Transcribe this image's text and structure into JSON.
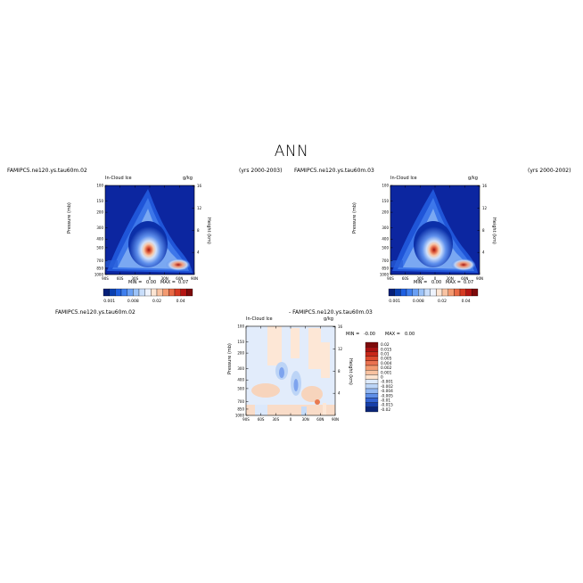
{
  "page": {
    "title": "ANN"
  },
  "panels": [
    {
      "case_label": "FAMIPC5.ne120.ys.tau60m.02",
      "years": "(yrs 2000-2003)",
      "field": "In-Cloud Ice",
      "units": "g/kg",
      "y_label": "Pressure (mb)",
      "y2_label": "Height (km)",
      "min_label": "MIN =",
      "min_value": "0.00",
      "max_label": "MAX =",
      "max_value": "0.07"
    },
    {
      "case_label": "FAMIPC5.ne120.ys.tau60m.03",
      "years": "(yrs 2000-2002)",
      "field": "In-Cloud Ice",
      "units": "g/kg",
      "y_label": "Pressure (mb)",
      "y2_label": "Height (km)",
      "min_label": "MIN =",
      "min_value": "0.00",
      "max_label": "MAX =",
      "max_value": "0.07"
    },
    {
      "case_label": "FAMIPC5.ne120.ys.tau60m.02",
      "diff_label": "- FAMIPC5.ne120.ys.tau60m.03",
      "field": "In-Cloud Ice",
      "units": "g/kg",
      "y_label": "Pressure (mb)",
      "y2_label": "Height (km)",
      "min_label": "MIN =",
      "min_value": "-0.00",
      "max_label": "MAX =",
      "max_value": "0.00"
    }
  ],
  "chart_data": [
    {
      "type": "heatmap",
      "title": "In-Cloud Ice",
      "units": "g/kg",
      "xlabel": "",
      "ylabel": "Pressure (mb)",
      "y2label": "Height (km)",
      "x_ticks": [
        "90S",
        "60S",
        "30S",
        "0",
        "30N",
        "60N",
        "90N"
      ],
      "y_ticks": [
        "100",
        "150",
        "200",
        "300",
        "400",
        "500",
        "700",
        "850",
        "1000"
      ],
      "y2_ticks": [
        "4",
        "8",
        "12",
        "16"
      ],
      "colorbar_labels": [
        "0.001",
        "0.008",
        "0.02",
        "0.04"
      ],
      "min": 0.0,
      "max": 0.07
    },
    {
      "type": "heatmap",
      "title": "In-Cloud Ice",
      "units": "g/kg",
      "xlabel": "",
      "ylabel": "Pressure (mb)",
      "y2label": "Height (km)",
      "x_ticks": [
        "90S",
        "60S",
        "30S",
        "0",
        "30N",
        "60N",
        "90N"
      ],
      "y_ticks": [
        "100",
        "150",
        "200",
        "300",
        "400",
        "500",
        "700",
        "850",
        "1000"
      ],
      "y2_ticks": [
        "4",
        "8",
        "12",
        "16"
      ],
      "colorbar_labels": [
        "0.001",
        "0.008",
        "0.02",
        "0.04"
      ],
      "min": 0.0,
      "max": 0.07
    },
    {
      "type": "heatmap",
      "title": "In-Cloud Ice",
      "units": "g/kg",
      "xlabel": "",
      "ylabel": "Pressure (mb)",
      "y2label": "Height (km)",
      "x_ticks": [
        "90S",
        "60S",
        "30S",
        "0",
        "30N",
        "60N",
        "90N"
      ],
      "y_ticks": [
        "100",
        "150",
        "200",
        "300",
        "400",
        "500",
        "700",
        "850",
        "1000"
      ],
      "y2_ticks": [
        "4",
        "8",
        "12",
        "16"
      ],
      "colorbar_labels": [
        "0.02",
        "0.015",
        "0.01",
        "0.005",
        "0.004",
        "0.002",
        "0.001",
        "0",
        "-0.001",
        "-0.002",
        "-0.004",
        "-0.005",
        "-0.01",
        "-0.015",
        "-0.02"
      ],
      "min": -0.0,
      "max": 0.0
    }
  ],
  "colors": {
    "abs_scale": [
      "#061f78",
      "#0a3fb0",
      "#1e5fe0",
      "#3f7fee",
      "#6aa0f4",
      "#9cc3f8",
      "#c9defb",
      "#eef3fd",
      "#fde5d3",
      "#f9c3a2",
      "#f39a70",
      "#e96a45",
      "#d63a22",
      "#b41512",
      "#7d0a0a"
    ],
    "diff_scale": [
      "#7d0a0a",
      "#a81212",
      "#c8281a",
      "#dd4a2e",
      "#ea7250",
      "#f39a70",
      "#f8c2a0",
      "#fde4d0",
      "#ddeafb",
      "#bcd5f7",
      "#93b8f2",
      "#5f8fe8",
      "#3464d3",
      "#173fa9",
      "#0b2578"
    ]
  }
}
